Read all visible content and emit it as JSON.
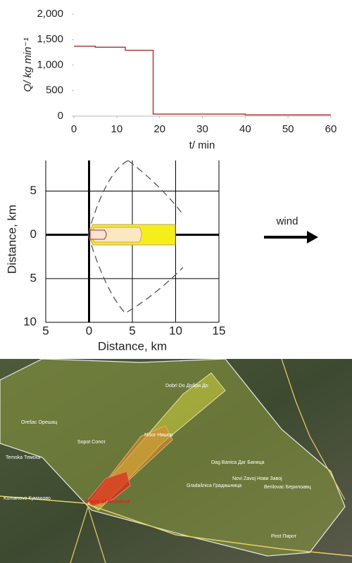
{
  "chart_data": [
    {
      "type": "line",
      "y_label": "Q/ kg min⁻¹",
      "x_label": "t/ min",
      "x": [
        0,
        5,
        5,
        12,
        12,
        18.5,
        18.5,
        40,
        40,
        60
      ],
      "values": [
        1370,
        1370,
        1350,
        1350,
        1290,
        1290,
        40,
        40,
        25,
        25
      ],
      "color": "#b03a3a",
      "xlim": [
        0,
        60
      ],
      "xticks": [
        0,
        10,
        20,
        30,
        40,
        50,
        60
      ],
      "ylim": [
        0,
        2000
      ],
      "yticks": [
        0,
        500,
        {
          "value": 1000,
          "label": "1,000"
        },
        {
          "value": 1500,
          "label": "1,500"
        },
        {
          "value": 2000,
          "label": "2,000"
        }
      ]
    },
    {
      "type": "plume",
      "x_label": "Distance, km",
      "y_label": "Distance, km",
      "annotation": "wind",
      "xlim": [
        -5,
        15
      ],
      "xticks": [
        {
          "value": -5,
          "label": "5"
        },
        0,
        5,
        10,
        15
      ],
      "ylim": [
        -10,
        8.5
      ],
      "yticks": [
        5,
        0,
        {
          "value": -5,
          "label": "5"
        },
        {
          "value": -10,
          "label": "10"
        }
      ],
      "grid": true
    }
  ],
  "map": {
    "labels": [
      "Place of Accident",
      "Pirot Пирот",
      "Dobri Do Добри До",
      "Nišor Нишор",
      "Sopot Сопот",
      "Dag Banica Даг Баница",
      "Gradašnica Градашница",
      "Orešac Орешац",
      "Temska Темска",
      "Kumanovo Куманово",
      "Novi Zavoj Нови Завој",
      "Berilovac Берилоавц"
    ]
  }
}
